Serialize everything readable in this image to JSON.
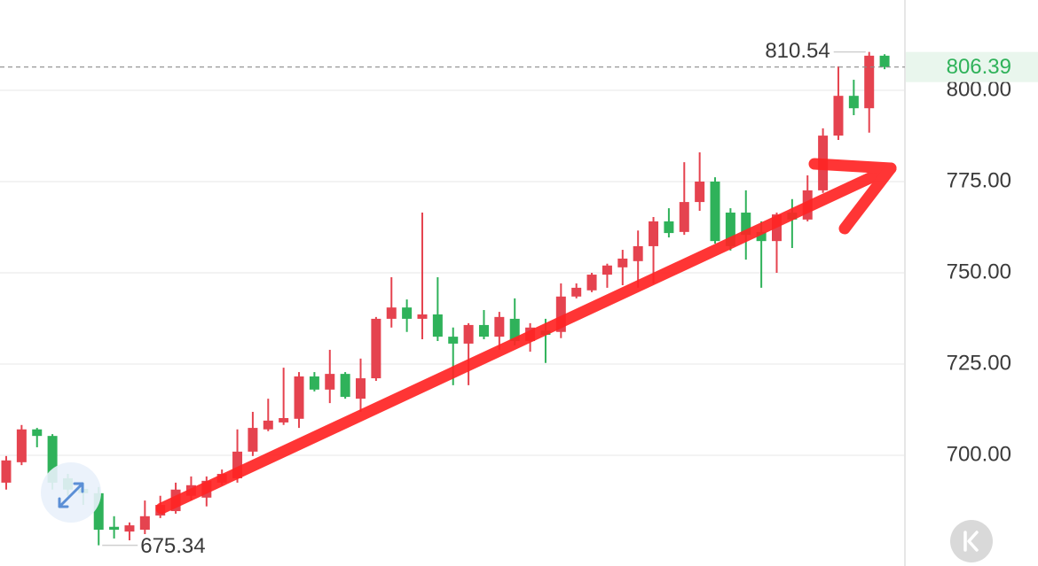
{
  "chart_data": {
    "type": "candlestick",
    "open": [
      692.5,
      698.1,
      707.1,
      705.3,
      693.7,
      690.8,
      689.6,
      680.4,
      679.1,
      679.6,
      683.5,
      684.7,
      688.9,
      688.4,
      692.5,
      693.7,
      701.0,
      707.1,
      709.0,
      710.0,
      721.6,
      718.0,
      722.3,
      715.5,
      721.1,
      737.4,
      740.5,
      737.4,
      738.6,
      732.5,
      730.6,
      735.7,
      732.5,
      737.4,
      731.3,
      734.2,
      733.8,
      743.5,
      745.2,
      749.5,
      751.5,
      753.2,
      757.3,
      764.1,
      761.2,
      769.4,
      775.0,
      766.5,
      766.5,
      761.2,
      758.7,
      766.5,
      764.6,
      772.6,
      787.6,
      798.5,
      795.1,
      809.5
    ],
    "high": [
      699.8,
      708.3,
      707.5,
      705.8,
      694.9,
      692.5,
      691.3,
      683.3,
      681.6,
      687.6,
      688.9,
      692.5,
      694.2,
      694.2,
      696.1,
      707.1,
      711.9,
      715.5,
      724.0,
      722.8,
      722.8,
      728.9,
      722.8,
      726.5,
      737.9,
      748.8,
      742.7,
      766.5,
      748.8,
      735.0,
      736.2,
      739.8,
      739.3,
      743.0,
      736.2,
      737.4,
      747.1,
      747.1,
      750.0,
      752.5,
      756.3,
      761.6,
      765.3,
      767.7,
      780.3,
      783.0,
      776.2,
      767.7,
      772.6,
      764.1,
      766.5,
      770.2,
      776.7,
      789.6,
      806.6,
      802.9,
      810.54,
      809.9
    ],
    "low": [
      690.6,
      697.3,
      702.2,
      690.6,
      688.9,
      686.4,
      675.34,
      677.2,
      676.7,
      678.4,
      682.8,
      684.0,
      687.6,
      686.0,
      691.8,
      692.5,
      699.8,
      706.6,
      708.3,
      707.5,
      717.5,
      714.3,
      715.5,
      711.9,
      720.4,
      735.0,
      733.8,
      731.8,
      731.3,
      719.2,
      719.2,
      731.8,
      728.9,
      730.1,
      728.4,
      725.3,
      732.1,
      743.0,
      744.7,
      745.9,
      746.6,
      745.9,
      747.1,
      759.7,
      760.4,
      767.0,
      758.0,
      756.1,
      753.6,
      745.9,
      750.0,
      756.8,
      764.1,
      771.9,
      786.4,
      793.2,
      788.4,
      805.8
    ],
    "close": [
      698.6,
      707.1,
      705.3,
      692.5,
      690.6,
      689.6,
      679.6,
      679.6,
      680.8,
      683.3,
      686.4,
      690.6,
      691.8,
      693.0,
      694.9,
      701.0,
      707.5,
      709.5,
      710.2,
      721.6,
      718.0,
      722.3,
      716.0,
      721.1,
      737.4,
      740.5,
      737.4,
      738.6,
      732.5,
      730.6,
      735.7,
      732.5,
      737.9,
      731.3,
      735.0,
      733.0,
      743.5,
      745.9,
      749.5,
      752.0,
      753.9,
      757.3,
      764.1,
      760.9,
      769.4,
      775.0,
      758.7,
      757.3,
      760.4,
      758.7,
      766.0,
      764.6,
      772.6,
      787.6,
      798.5,
      795.1,
      809.5,
      806.39
    ],
    "up_color": "#e5434f",
    "down_color": "#2fb25a",
    "ylim": [
      669.66,
      824.76
    ],
    "yticks": [
      {
        "value": 700,
        "label": "700.00"
      },
      {
        "value": 725,
        "label": "725.00"
      },
      {
        "value": 750,
        "label": "750.00"
      },
      {
        "value": 775,
        "label": "775.00"
      },
      {
        "value": 800,
        "label": "800.00"
      }
    ],
    "grid": true
  }
}
